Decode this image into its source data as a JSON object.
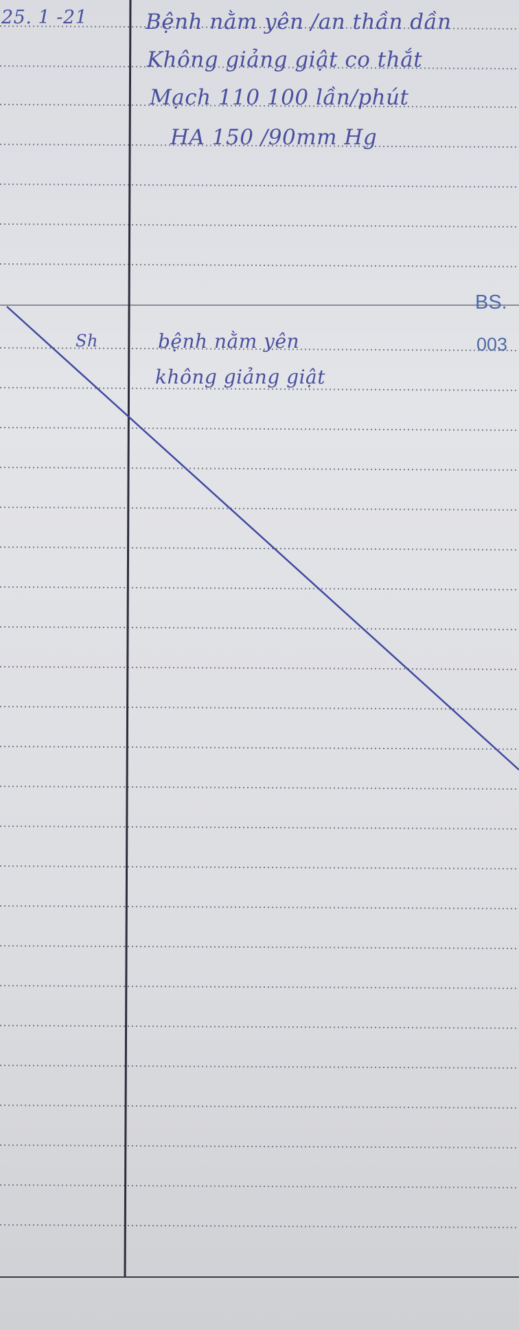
{
  "entry_1": {
    "date": "25. 1 -21",
    "lines": [
      "Bệnh nằm yên /an thần dần",
      "Không giảng giật co thắt",
      "Mạch 110 100 lần/phút",
      "HA 150 /90mm Hg"
    ]
  },
  "doctor_stamp": {
    "title": "BS.",
    "code": "003"
  },
  "entry_2": {
    "marker": "Sh",
    "lines": [
      "bệnh nằm yên",
      "không giảng giật"
    ]
  },
  "colors": {
    "ink": "#4a4f9e",
    "stamp": "#4d6aa8",
    "rule": "#7a7d8a",
    "paper": "#e1e2e6"
  }
}
